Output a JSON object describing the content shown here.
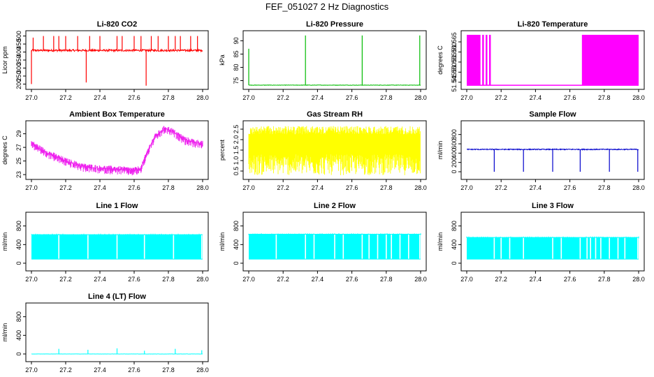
{
  "page_title": "FEF_051027  2 Hz Diagnostics",
  "chart_data": [
    {
      "type": "line",
      "title": "Li-820 CO2",
      "ylabel": "Licor ppm",
      "xlabel": "",
      "color": "#ff0000",
      "xlim": [
        27.0,
        28.0
      ],
      "ylim": [
        180,
        520
      ],
      "xticks": [
        "27.0",
        "27.2",
        "27.4",
        "27.6",
        "27.8",
        "28.0"
      ],
      "yticks": [
        "200",
        "250",
        "300",
        "350",
        "400",
        "450",
        "500"
      ],
      "pattern": "spiky",
      "series": [
        {
          "name": "CO2",
          "baseline": 410,
          "noise": 12,
          "spikes": [
            [
              27.0,
              200
            ],
            [
              27.01,
              490
            ],
            [
              27.07,
              500
            ],
            [
              27.13,
              500
            ],
            [
              27.16,
              500
            ],
            [
              27.2,
              500
            ],
            [
              27.27,
              500
            ],
            [
              27.32,
              210
            ],
            [
              27.34,
              500
            ],
            [
              27.4,
              500
            ],
            [
              27.5,
              500
            ],
            [
              27.53,
              500
            ],
            [
              27.6,
              500
            ],
            [
              27.64,
              500
            ],
            [
              27.67,
              190
            ],
            [
              27.7,
              500
            ],
            [
              27.74,
              500
            ],
            [
              27.8,
              500
            ],
            [
              27.84,
              500
            ],
            [
              27.87,
              500
            ],
            [
              27.93,
              500
            ],
            [
              27.97,
              500
            ]
          ]
        }
      ]
    },
    {
      "type": "line",
      "title": "Li-820 Pressure",
      "ylabel": "kPa",
      "xlabel": "",
      "color": "#00bb00",
      "xlim": [
        27.0,
        28.0
      ],
      "ylim": [
        72.5,
        93
      ],
      "xticks": [
        "27.0",
        "27.2",
        "27.4",
        "27.6",
        "27.8",
        "28.0"
      ],
      "yticks": [
        "75",
        "80",
        "85",
        "90"
      ],
      "pattern": "spiky",
      "series": [
        {
          "name": "Pressure",
          "baseline": 73.3,
          "noise": 0.15,
          "spikes": [
            [
              27.0,
              87
            ],
            [
              27.33,
              92
            ],
            [
              27.66,
              92
            ],
            [
              27.995,
              92
            ]
          ]
        }
      ]
    },
    {
      "type": "area",
      "title": "Li-820 Temperature",
      "ylabel": "degrees C",
      "xlabel": "",
      "color": "#ff00ff",
      "xlim": [
        27.0,
        28.0
      ],
      "ylim": [
        51.5425,
        51.5695
      ],
      "xticks": [
        "27.0",
        "27.2",
        "27.4",
        "27.6",
        "27.8",
        "28.0"
      ],
      "yticks": [
        "51.545",
        "51.550",
        "51.555",
        "51.560",
        "51.565"
      ],
      "pattern": "blocks",
      "series": [
        {
          "name": "Temperature",
          "low": 51.5435,
          "high": 51.5685,
          "blocks": [
            [
              27.0,
              27.08
            ],
            [
              27.09,
              27.1
            ],
            [
              27.11,
              27.12
            ],
            [
              27.13,
              27.14
            ],
            [
              27.67,
              28.0
            ]
          ]
        }
      ]
    },
    {
      "type": "line",
      "title": "Ambient Box Temperature",
      "ylabel": "degrees C",
      "xlabel": "",
      "color": "#ee22ee",
      "xlim": [
        27.0,
        28.0
      ],
      "ylim": [
        22.6,
        30.6
      ],
      "xticks": [
        "27.0",
        "27.2",
        "27.4",
        "27.6",
        "27.8",
        "28.0"
      ],
      "yticks": [
        "23",
        "25",
        "27",
        "29"
      ],
      "pattern": "band",
      "series": [
        {
          "name": "Box Temp",
          "noise": 0.8,
          "points": [
            [
              27.0,
              27.6
            ],
            [
              27.05,
              26.8
            ],
            [
              27.1,
              26.1
            ],
            [
              27.2,
              25.0
            ],
            [
              27.3,
              24.2
            ],
            [
              27.4,
              23.9
            ],
            [
              27.5,
              23.8
            ],
            [
              27.6,
              23.6
            ],
            [
              27.64,
              23.9
            ],
            [
              27.68,
              26.5
            ],
            [
              27.72,
              28.5
            ],
            [
              27.78,
              29.8
            ],
            [
              27.82,
              29.4
            ],
            [
              27.9,
              28.1
            ],
            [
              27.96,
              27.7
            ],
            [
              28.0,
              27.6
            ]
          ]
        }
      ]
    },
    {
      "type": "line",
      "title": "Gas Stream RH",
      "ylabel": "percent",
      "xlabel": "",
      "color": "#ffff00",
      "xlim": [
        27.0,
        28.0
      ],
      "ylim": [
        0.2,
        2.8
      ],
      "xticks": [
        "27.0",
        "27.2",
        "27.4",
        "27.6",
        "27.8",
        "28.0"
      ],
      "yticks": [
        "0.5",
        "1.0",
        "1.5",
        "2.0",
        "2.5"
      ],
      "pattern": "noise",
      "series": [
        {
          "name": "RH",
          "low": 0.3,
          "high": 2.65
        }
      ]
    },
    {
      "type": "line",
      "title": "Sample Flow",
      "ylabel": "ml/min",
      "xlabel": "",
      "color": "#0000cc",
      "xlim": [
        27.0,
        28.0
      ],
      "ylim": [
        -120,
        1050
      ],
      "xticks": [
        "27.0",
        "27.2",
        "27.4",
        "27.6",
        "27.8",
        "28.0"
      ],
      "yticks": [
        "0",
        "200",
        "400",
        "600",
        "800"
      ],
      "pattern": "spiky",
      "series": [
        {
          "name": "Sample Flow",
          "baseline": 480,
          "noise": 20,
          "spikes": [
            [
              27.16,
              0
            ],
            [
              27.33,
              0
            ],
            [
              27.5,
              0
            ],
            [
              27.66,
              0
            ],
            [
              27.83,
              0
            ],
            [
              27.995,
              0
            ]
          ]
        }
      ]
    },
    {
      "type": "area",
      "title": "Line 1 Flow",
      "ylabel": "ml/min",
      "xlabel": "",
      "color": "#00ffff",
      "xlim": [
        27.0,
        28.0
      ],
      "ylim": [
        -120,
        1050
      ],
      "xticks": [
        "27.0",
        "27.2",
        "27.4",
        "27.6",
        "27.8",
        "28.0"
      ],
      "yticks": [
        "0",
        "400",
        "800"
      ],
      "pattern": "gappy",
      "series": [
        {
          "name": "Line 1",
          "low": 80,
          "high": 620,
          "gaps": [
            27.16,
            27.33,
            27.5,
            27.66,
            27.83,
            27.995
          ]
        }
      ]
    },
    {
      "type": "area",
      "title": "Line 2 Flow",
      "ylabel": "ml/min",
      "xlabel": "",
      "color": "#00ffff",
      "xlim": [
        27.0,
        28.0
      ],
      "ylim": [
        -120,
        1050
      ],
      "xticks": [
        "27.0",
        "27.2",
        "27.4",
        "27.6",
        "27.8",
        "28.0"
      ],
      "yticks": [
        "0",
        "400",
        "800"
      ],
      "pattern": "gappy",
      "series": [
        {
          "name": "Line 2",
          "low": 80,
          "high": 630,
          "gaps": [
            27.16,
            27.33,
            27.38,
            27.5,
            27.55,
            27.66,
            27.7,
            27.75,
            27.8,
            27.83,
            27.88,
            27.93,
            27.995
          ]
        }
      ]
    },
    {
      "type": "area",
      "title": "Line 3 Flow",
      "ylabel": "ml/min",
      "xlabel": "",
      "color": "#00ffff",
      "xlim": [
        27.0,
        28.0
      ],
      "ylim": [
        -120,
        1050
      ],
      "xticks": [
        "27.0",
        "27.2",
        "27.4",
        "27.6",
        "27.8",
        "28.0"
      ],
      "yticks": [
        "0",
        "400",
        "800"
      ],
      "pattern": "gappy",
      "series": [
        {
          "name": "Line 3",
          "low": 80,
          "high": 560,
          "gaps": [
            27.16,
            27.2,
            27.25,
            27.33,
            27.5,
            27.55,
            27.66,
            27.7,
            27.72,
            27.75,
            27.78,
            27.83,
            27.88,
            27.92,
            27.995
          ]
        }
      ]
    },
    {
      "type": "line",
      "title": "Line 4 (LT) Flow",
      "ylabel": "ml/min",
      "xlabel": "",
      "color": "#00ffff",
      "xlim": [
        27.0,
        28.0
      ],
      "ylim": [
        -120,
        1050
      ],
      "xticks": [
        "27.0",
        "27.2",
        "27.4",
        "27.6",
        "27.8",
        "28.0"
      ],
      "yticks": [
        "0",
        "400",
        "800"
      ],
      "pattern": "spiky",
      "series": [
        {
          "name": "Line 4",
          "baseline": 0,
          "noise": 4,
          "spikes": [
            [
              27.16,
              110
            ],
            [
              27.33,
              90
            ],
            [
              27.5,
              120
            ],
            [
              27.66,
              70
            ],
            [
              27.84,
              110
            ],
            [
              27.995,
              80
            ]
          ]
        }
      ]
    }
  ]
}
